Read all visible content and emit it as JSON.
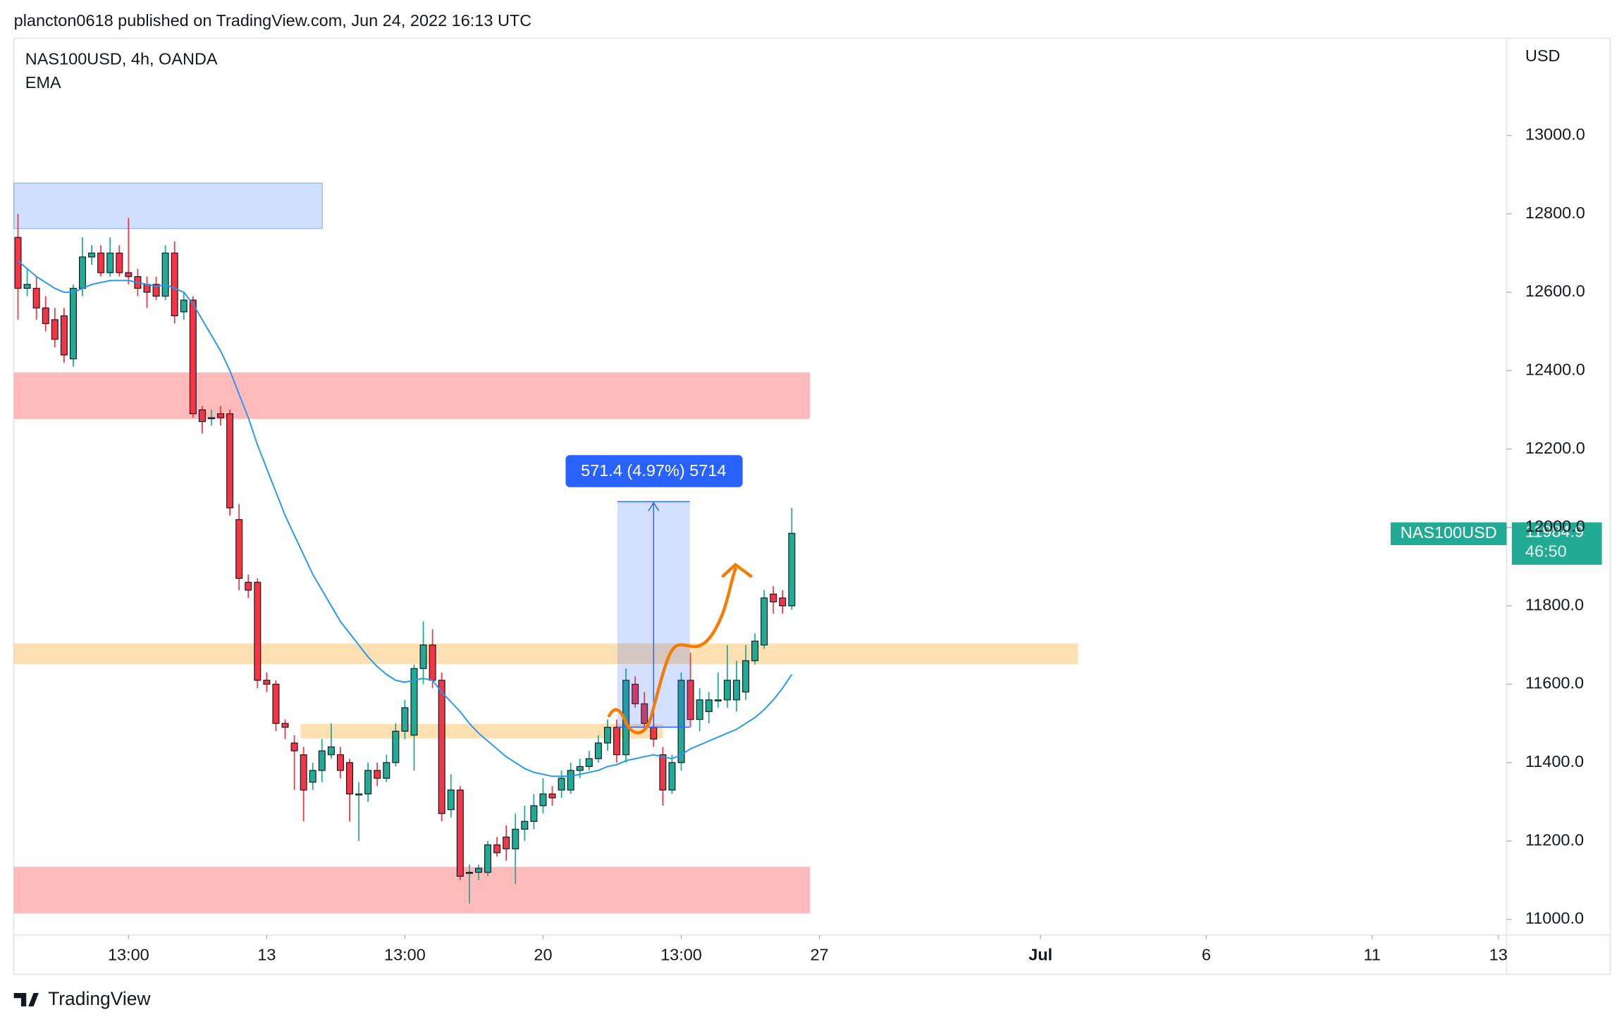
{
  "header": {
    "text": "plancton0618 published on TradingView.com, Jun 24, 2022 16:13 UTC",
    "footer": "TradingView"
  },
  "chart_data": {
    "type": "candlestick",
    "title": "NAS100USD, 4h, OANDA",
    "currency": "USD",
    "up_color": "#22ab94",
    "down_color": "#f23645",
    "open": [
      12740,
      12610,
      12610,
      12560,
      12530,
      12540,
      12430,
      12610,
      12690,
      12700,
      12650,
      12700,
      12650,
      12640,
      12620,
      12620,
      12590,
      12700,
      12550,
      12580,
      12300,
      12280,
      12290,
      12290,
      12020,
      11860,
      11860,
      11610,
      11600,
      11500,
      11450,
      11420,
      11350,
      11380,
      11420,
      11420,
      11400,
      11320,
      11320,
      11380,
      11360,
      11400,
      11480,
      11470,
      11640,
      11700,
      11610,
      11280,
      11330,
      11120,
      11120,
      11120,
      11190,
      11210,
      11180,
      11230,
      11250,
      11290,
      11320,
      11330,
      11330,
      11380,
      11390,
      11410,
      11450,
      11490,
      11420,
      11600,
      11550,
      11490,
      11420,
      11330,
      11400,
      11610,
      11510,
      11530,
      11560,
      11560,
      11560,
      11580,
      11660,
      11700,
      11830,
      11820,
      11800
    ],
    "high": [
      12800,
      12660,
      12640,
      12590,
      12560,
      12560,
      12620,
      12740,
      12720,
      12720,
      12740,
      12720,
      12790,
      12660,
      12640,
      12640,
      12720,
      12730,
      12600,
      12590,
      12310,
      12300,
      12310,
      12300,
      12060,
      11880,
      11870,
      11630,
      11610,
      11510,
      11470,
      11440,
      11400,
      11460,
      11500,
      11440,
      11410,
      11350,
      11400,
      11400,
      11420,
      11500,
      11560,
      11650,
      11760,
      11740,
      11630,
      11370,
      11340,
      11140,
      11140,
      11200,
      11210,
      11240,
      11270,
      11290,
      11320,
      11360,
      11340,
      11380,
      11400,
      11410,
      11430,
      11470,
      11510,
      11510,
      11640,
      11620,
      11580,
      11530,
      11440,
      11420,
      11630,
      11680,
      11590,
      11580,
      11630,
      11700,
      11660,
      11700,
      11730,
      11840,
      11850,
      11840,
      12050
    ],
    "low": [
      12530,
      12590,
      12530,
      12500,
      12460,
      12420,
      12410,
      12590,
      12670,
      12640,
      12640,
      12640,
      12620,
      12590,
      12560,
      12580,
      12580,
      12520,
      12530,
      12280,
      12240,
      12260,
      12260,
      12030,
      11840,
      11820,
      11590,
      11580,
      11480,
      11460,
      11330,
      11250,
      11330,
      11350,
      11410,
      11360,
      11250,
      11200,
      11300,
      11340,
      11350,
      11390,
      11460,
      11380,
      11600,
      11590,
      11250,
      11260,
      11100,
      11040,
      11100,
      11110,
      11160,
      11150,
      11090,
      11200,
      11230,
      11270,
      11290,
      11310,
      11320,
      11360,
      11380,
      11400,
      11430,
      11400,
      11400,
      11540,
      11480,
      11440,
      11290,
      11320,
      11380,
      11490,
      11480,
      11500,
      11540,
      11540,
      11530,
      11560,
      11650,
      11690,
      11780,
      11780,
      11790
    ],
    "close": [
      12610,
      12620,
      12560,
      12520,
      12480,
      12440,
      12610,
      12690,
      12700,
      12650,
      12700,
      12650,
      12640,
      12610,
      12600,
      12590,
      12700,
      12540,
      12580,
      12290,
      12270,
      12280,
      12280,
      12050,
      11870,
      11840,
      11610,
      11600,
      11500,
      11490,
      11430,
      11330,
      11380,
      11430,
      11440,
      11380,
      11320,
      11320,
      11380,
      11360,
      11400,
      11480,
      11540,
      11640,
      11700,
      11610,
      11270,
      11330,
      11110,
      11120,
      11130,
      11190,
      11170,
      11180,
      11230,
      11250,
      11290,
      11320,
      11310,
      11360,
      11380,
      11390,
      11410,
      11450,
      11490,
      11420,
      11610,
      11550,
      11500,
      11460,
      11330,
      11400,
      11610,
      11510,
      11560,
      11560,
      11560,
      11610,
      11610,
      11660,
      11710,
      11820,
      11810,
      11800,
      11984.9
    ],
    "ema": {
      "name": "EMA",
      "color": "#2196f3",
      "values": [
        12680,
        12660,
        12640,
        12625,
        12610,
        12600,
        12600,
        12610,
        12620,
        12625,
        12630,
        12630,
        12630,
        12625,
        12620,
        12615,
        12620,
        12610,
        12600,
        12570,
        12530,
        12490,
        12450,
        12400,
        12340,
        12280,
        12210,
        12150,
        12090,
        12030,
        11980,
        11930,
        11880,
        11840,
        11800,
        11760,
        11730,
        11700,
        11670,
        11645,
        11625,
        11610,
        11605,
        11610,
        11615,
        11610,
        11580,
        11555,
        11530,
        11500,
        11475,
        11455,
        11435,
        11415,
        11400,
        11385,
        11375,
        11370,
        11365,
        11365,
        11365,
        11370,
        11375,
        11380,
        11390,
        11395,
        11405,
        11410,
        11415,
        11420,
        11415,
        11410,
        11420,
        11435,
        11445,
        11455,
        11465,
        11475,
        11485,
        11500,
        11515,
        11535,
        11560,
        11590,
        11625
      ]
    },
    "ylim": [
      10960,
      13248
    ],
    "yticks": [
      {
        "value": 11000,
        "label": "11000.0"
      },
      {
        "value": 11200,
        "label": "11200.0"
      },
      {
        "value": 11400,
        "label": "11400.0"
      },
      {
        "value": 11600,
        "label": "11600.0"
      },
      {
        "value": 11800,
        "label": "11800.0"
      },
      {
        "value": 12000,
        "label": "12000.0"
      },
      {
        "value": 12200,
        "label": "12200.0"
      },
      {
        "value": 12400,
        "label": "12400.0"
      },
      {
        "value": 12600,
        "label": "12600.0"
      },
      {
        "value": 12800,
        "label": "12800.0"
      },
      {
        "value": 13000,
        "label": "13000.0"
      }
    ],
    "xlim": [
      -0.45,
      161.6
    ],
    "xticks": [
      {
        "value": 12,
        "label": "13:00"
      },
      {
        "value": 27,
        "label": "13"
      },
      {
        "value": 42,
        "label": "13:00"
      },
      {
        "value": 57,
        "label": "20"
      },
      {
        "value": 72,
        "label": "13:00"
      },
      {
        "value": 87,
        "label": "27"
      },
      {
        "value": 111,
        "label": "Jul"
      },
      {
        "value": 129,
        "label": "6"
      },
      {
        "value": 147,
        "label": "11"
      },
      {
        "value": 160.7,
        "label": "13"
      }
    ],
    "last_price": {
      "symbol": "NAS100USD",
      "countdown": "46:50"
    },
    "measure": {
      "label": "571.4 (4.97%) 5714"
    }
  }
}
